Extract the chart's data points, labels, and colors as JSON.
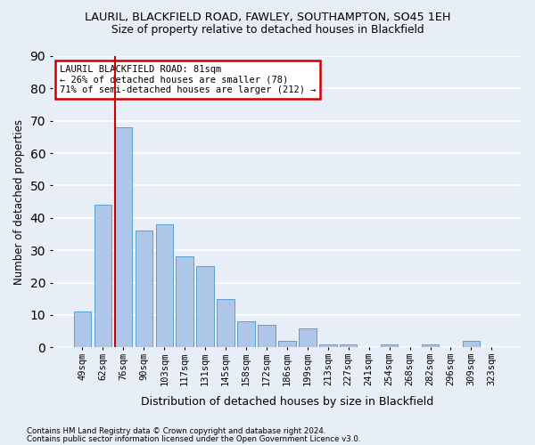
{
  "title1": "LAURIL, BLACKFIELD ROAD, FAWLEY, SOUTHAMPTON, SO45 1EH",
  "title2": "Size of property relative to detached houses in Blackfield",
  "xlabel": "Distribution of detached houses by size in Blackfield",
  "ylabel": "Number of detached properties",
  "categories": [
    "49sqm",
    "62sqm",
    "76sqm",
    "90sqm",
    "103sqm",
    "117sqm",
    "131sqm",
    "145sqm",
    "158sqm",
    "172sqm",
    "186sqm",
    "199sqm",
    "213sqm",
    "227sqm",
    "241sqm",
    "254sqm",
    "268sqm",
    "282sqm",
    "296sqm",
    "309sqm",
    "323sqm"
  ],
  "values": [
    11,
    44,
    68,
    36,
    38,
    28,
    25,
    15,
    8,
    7,
    2,
    6,
    1,
    1,
    0,
    1,
    0,
    1,
    0,
    2,
    0
  ],
  "bar_color": "#aec6e8",
  "bar_edge_color": "#5a9fd4",
  "bg_color": "#e8eef7",
  "grid_color": "#ffffff",
  "vline_bar_index": 2,
  "vline_color": "#cc0000",
  "annotation_line1": "LAURIL BLACKFIELD ROAD: 81sqm",
  "annotation_line2": "← 26% of detached houses are smaller (78)",
  "annotation_line3": "71% of semi-detached houses are larger (212) →",
  "annotation_box_edge_color": "#cc0000",
  "ylim": [
    0,
    90
  ],
  "yticks": [
    0,
    10,
    20,
    30,
    40,
    50,
    60,
    70,
    80,
    90
  ],
  "footer1": "Contains HM Land Registry data © Crown copyright and database right 2024.",
  "footer2": "Contains public sector information licensed under the Open Government Licence v3.0."
}
